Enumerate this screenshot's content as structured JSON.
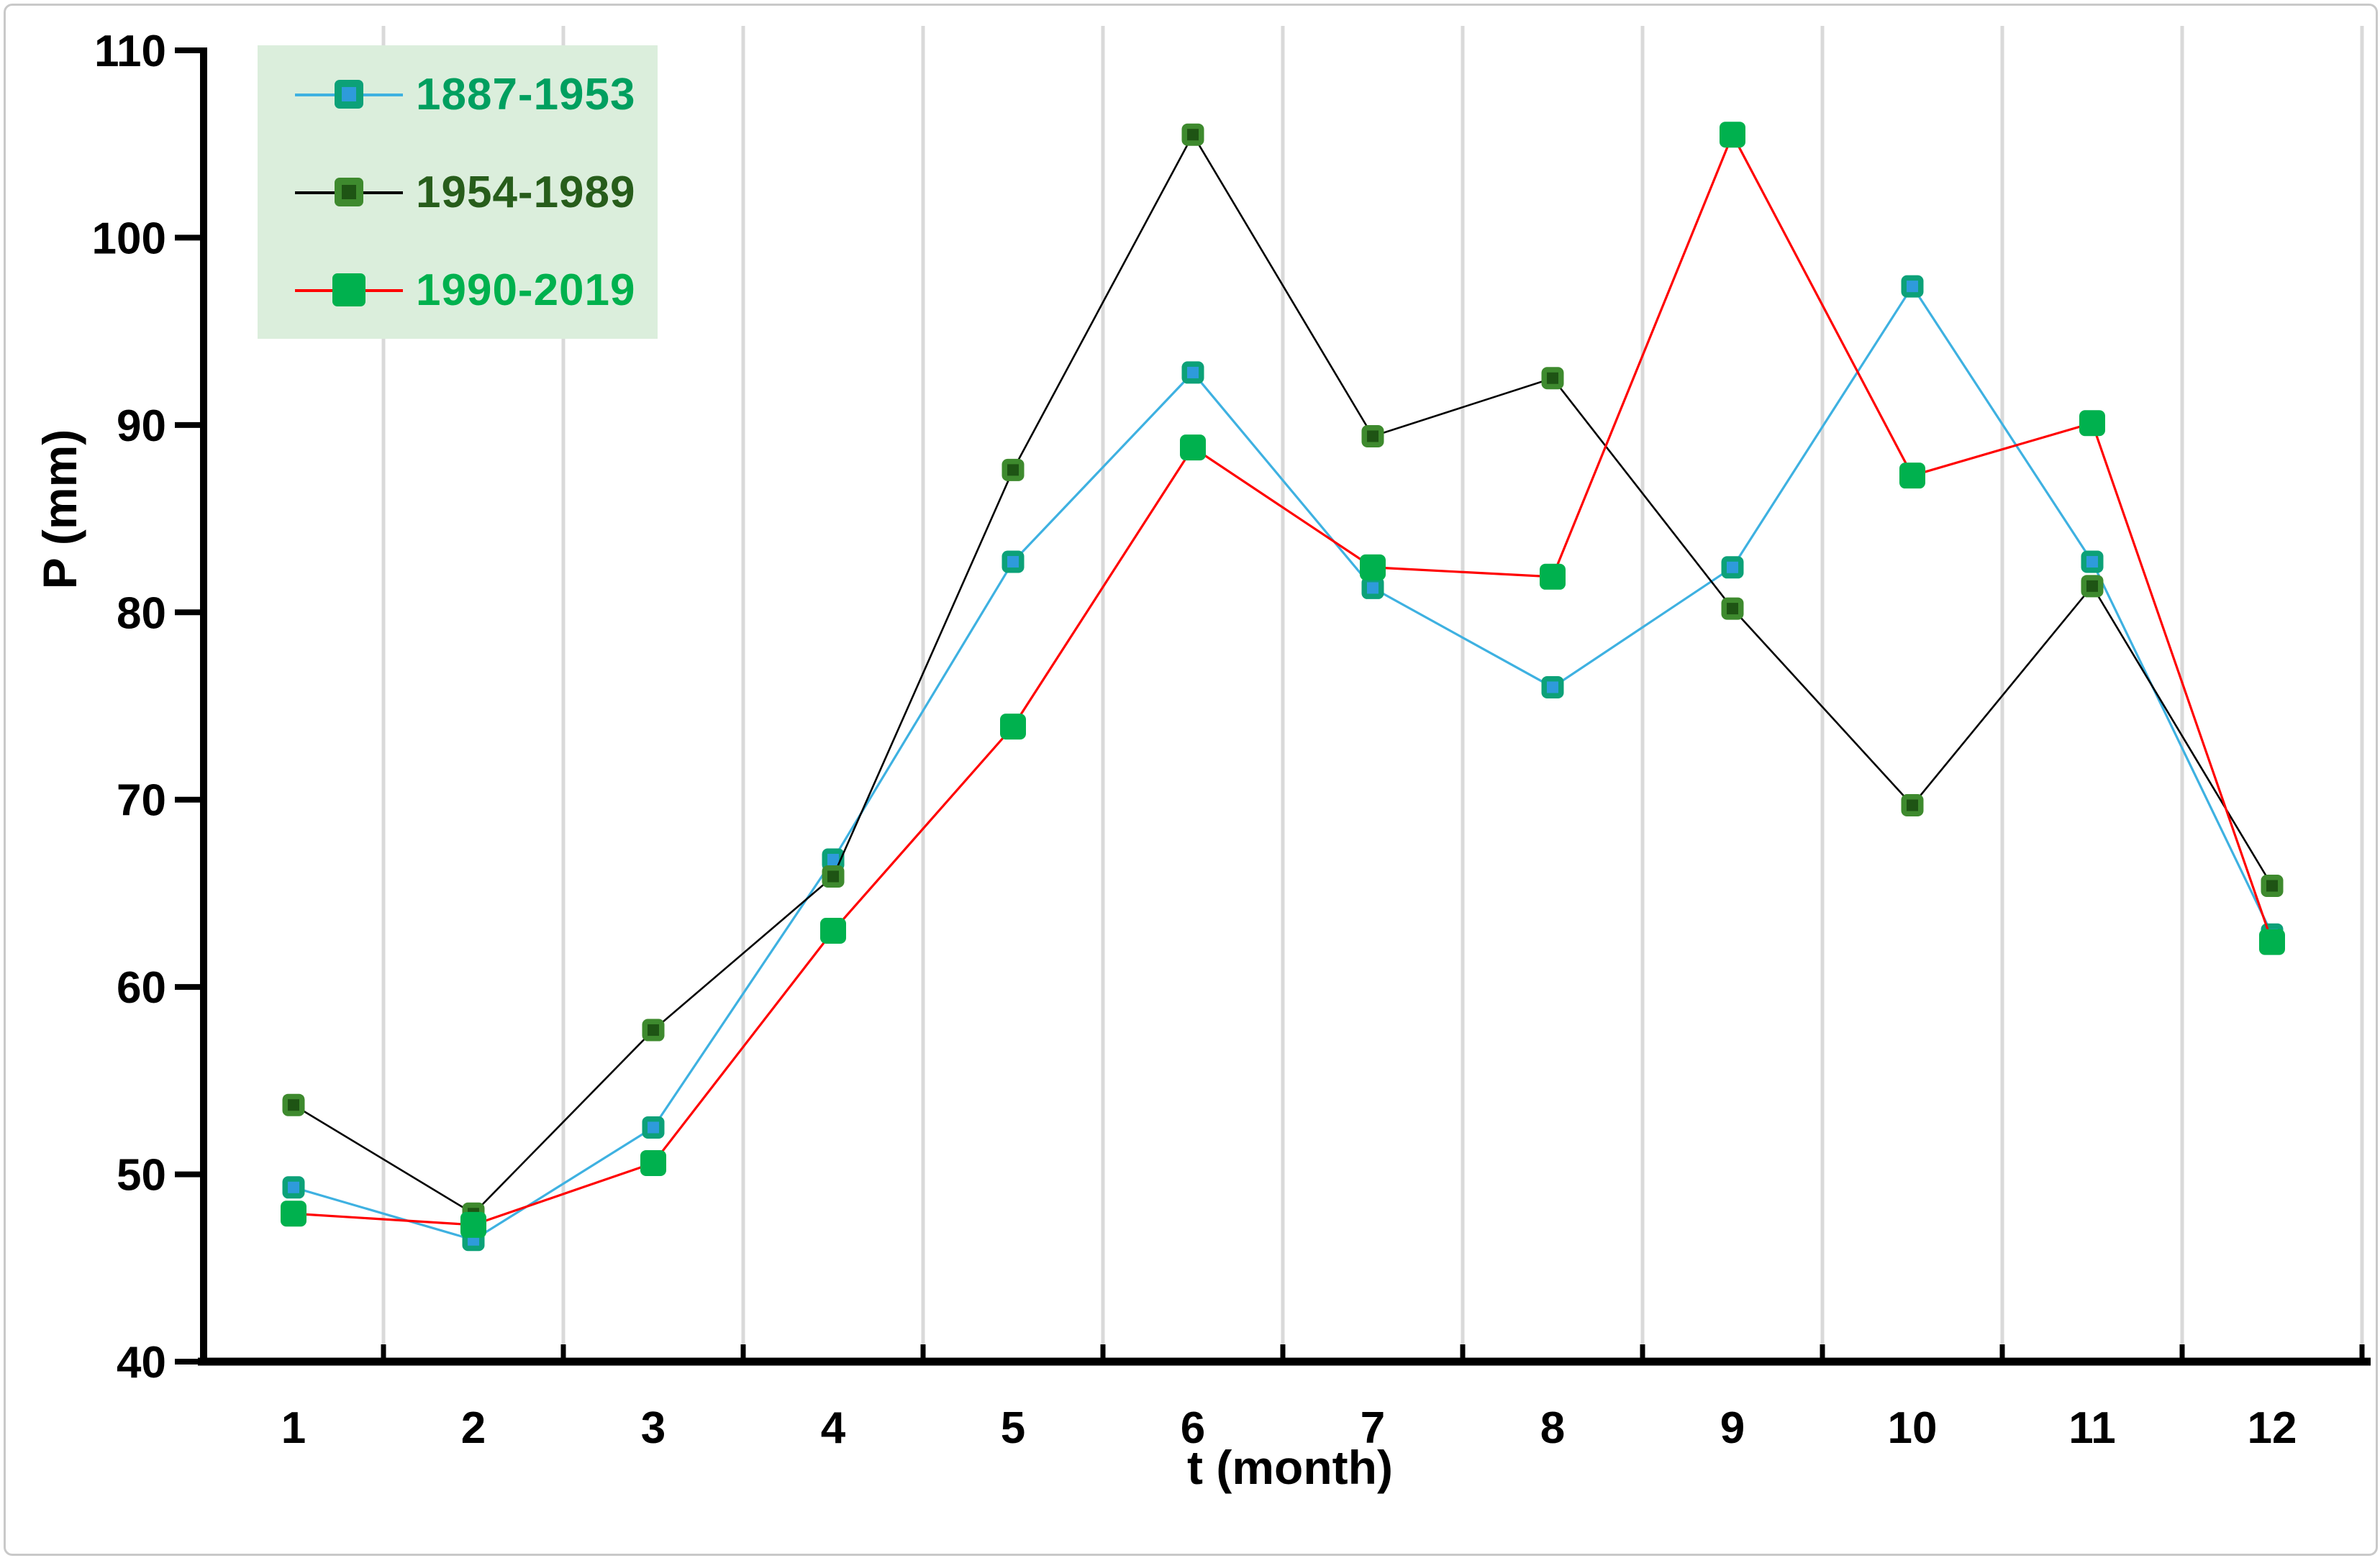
{
  "chart_data": {
    "type": "line",
    "title": "",
    "xlabel": "t (month)",
    "ylabel": "P (mm)",
    "x": [
      1,
      2,
      3,
      4,
      5,
      6,
      7,
      8,
      9,
      10,
      11,
      12
    ],
    "xticks": [
      1,
      2,
      3,
      4,
      5,
      6,
      7,
      8,
      9,
      10,
      11,
      12
    ],
    "yticks": [
      40,
      50,
      60,
      70,
      80,
      90,
      100,
      110
    ],
    "ylim": [
      40,
      110
    ],
    "xlim_categories": 12,
    "grid": {
      "vertical": true,
      "horizontal": false,
      "color": "#D9D9D9"
    },
    "axis_color": "#000000",
    "tick_label_color": "#000000",
    "legend": {
      "position": "top-left",
      "background": "#DBEEDC"
    },
    "series": [
      {
        "name": "1887-1953",
        "values": [
          49.3,
          46.5,
          52.5,
          66.8,
          82.7,
          92.8,
          81.3,
          76.0,
          82.4,
          97.4,
          82.7,
          62.8
        ],
        "line_color": "#3EB1E1",
        "marker_fill": "#0CA178",
        "marker_inner": "#2E9BDB",
        "label_color": "#009F5F"
      },
      {
        "name": "1954-1989",
        "values": [
          53.7,
          47.9,
          57.7,
          65.9,
          87.6,
          105.5,
          89.4,
          92.5,
          80.2,
          69.7,
          81.4,
          65.4
        ],
        "line_color": "#000000",
        "marker_fill": "#3E8A2E",
        "marker_inner": "#1E5414",
        "label_color": "#275D1B"
      },
      {
        "name": "1990-2019",
        "values": [
          47.9,
          47.3,
          50.6,
          63.0,
          73.9,
          88.8,
          82.4,
          81.9,
          105.5,
          87.3,
          90.1,
          62.4
        ],
        "line_color": "#FF0000",
        "marker_fill": "#00B14E",
        "marker_inner": null,
        "label_color": "#00B14E"
      }
    ]
  }
}
